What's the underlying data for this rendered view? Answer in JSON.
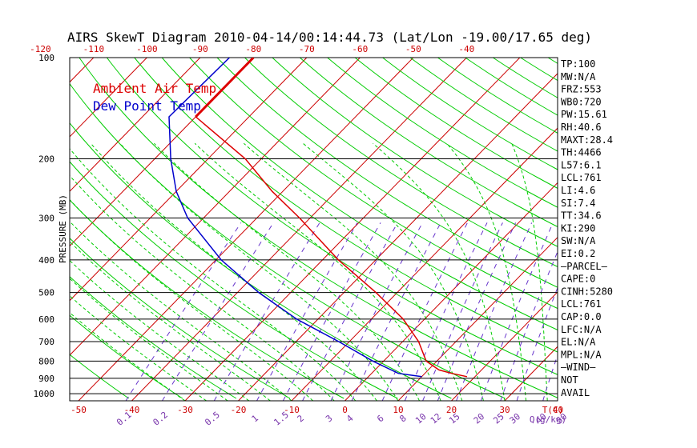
{
  "title": "AIRS SkewT Diagram 2010-04-14/00:14:44.73 (Lat/Lon -19.00/17.65 deg)",
  "colors": {
    "ambient": "#dd0000",
    "dewpoint": "#0000cc",
    "isotherm": "#cc0000",
    "dry_adiabat": "#00cc00",
    "moist_adiabat": "#00cc00",
    "mixing_ratio": "#6633cc",
    "tick_label_red": "#cc0000",
    "tick_label_purple": "#7733aa"
  },
  "legend": [
    {
      "label": "Ambient Air Temp",
      "color": "#dd0000"
    },
    {
      "label": "Dew Point Temp",
      "color": "#0000cc"
    }
  ],
  "indices": [
    "TP:100",
    "MW:N/A",
    "FRZ:553",
    "WB0:720",
    "PW:15.61",
    "RH:40.6",
    "MAXT:28.4",
    "TH:4466",
    "L57:6.1",
    "LCL:761",
    "LI:4.6",
    "SI:7.4",
    "TT:34.6",
    "KI:290",
    "SW:N/A",
    "EI:0.2",
    "—PARCEL—",
    "CAPE:0",
    "CINH:5280",
    "LCL:761",
    "CAP:0.0",
    "LFC:N/A",
    "EL:N/A",
    "MPL:N/A",
    "—WIND—",
    "NOT",
    "AVAIL"
  ],
  "chart_data": {
    "type": "line",
    "title": "AIRS SkewT Diagram 2010-04-14/00:14:44.73 (Lat/Lon -19.00/17.65 deg)",
    "ylabel": "PRESSURE (MB)",
    "xlabel_bottom_unit": "T(C)",
    "xlabel_mixing_unit": "Q(g/kg)",
    "pressure_ticks": [
      100,
      200,
      300,
      400,
      500,
      600,
      700,
      800,
      900,
      1000
    ],
    "pressure_range": [
      100,
      1050
    ],
    "top_temp_ticks": [
      "-120",
      "-110",
      "-100",
      "-90",
      "-80",
      "-70",
      "-60",
      "-50",
      "-40"
    ],
    "bottom_temp_ticks": [
      "-50",
      "-40",
      "-30",
      "-20",
      "-10",
      "0",
      "10",
      "20",
      "30",
      "40"
    ],
    "mixing_ratio_ticks": [
      "0.1",
      "0.2",
      "0.5",
      "1",
      "1.5",
      "2",
      "3",
      "4",
      "6",
      "8",
      "10",
      "12",
      "15",
      "20",
      "25",
      "30",
      "40",
      "50"
    ],
    "skew_deg_per_100px_at_bottom": 0,
    "series": [
      {
        "name": "Ambient Air Temp",
        "unit": "C",
        "points": [
          {
            "p": 100,
            "t": -80
          },
          {
            "p": 150,
            "t": -80
          },
          {
            "p": 200,
            "t": -63
          },
          {
            "p": 250,
            "t": -52
          },
          {
            "p": 300,
            "t": -42
          },
          {
            "p": 400,
            "t": -27
          },
          {
            "p": 500,
            "t": -14
          },
          {
            "p": 600,
            "t": -4
          },
          {
            "p": 700,
            "t": 3
          },
          {
            "p": 800,
            "t": 8
          },
          {
            "p": 850,
            "t": 12
          },
          {
            "p": 870,
            "t": 15
          },
          {
            "p": 890,
            "t": 18.5
          }
        ]
      },
      {
        "name": "Dew Point Temp",
        "unit": "C",
        "points": [
          {
            "p": 100,
            "t": -84.5
          },
          {
            "p": 150,
            "t": -85
          },
          {
            "p": 200,
            "t": -77
          },
          {
            "p": 250,
            "t": -70
          },
          {
            "p": 300,
            "t": -63
          },
          {
            "p": 400,
            "t": -49
          },
          {
            "p": 500,
            "t": -36
          },
          {
            "p": 600,
            "t": -24
          },
          {
            "p": 700,
            "t": -12
          },
          {
            "p": 800,
            "t": -2
          },
          {
            "p": 870,
            "t": 5
          },
          {
            "p": 890,
            "t": 10
          }
        ]
      }
    ]
  }
}
